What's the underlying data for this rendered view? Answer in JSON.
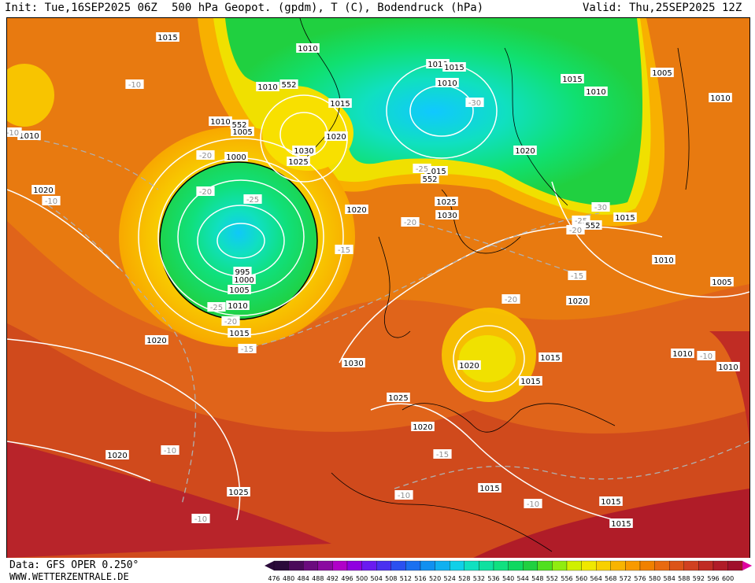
{
  "header": {
    "init": "Init: Tue,16SEP2025 06Z",
    "title": "500 hPa Geopot. (gpdm), T (C), Bodendruck (hPa)",
    "valid": "Valid: Thu,25SEP2025 12Z"
  },
  "footer": {
    "data_source": "Data: GFS OPER 0.250°",
    "website": "WWW.WETTERZENTRALE.DE"
  },
  "legend": {
    "ticks": [
      "476",
      "480",
      "484",
      "488",
      "492",
      "496",
      "500",
      "504",
      "508",
      "512",
      "516",
      "520",
      "524",
      "528",
      "532",
      "536",
      "540",
      "544",
      "548",
      "552",
      "556",
      "560",
      "564",
      "568",
      "572",
      "576",
      "580",
      "584",
      "588",
      "592",
      "596",
      "600"
    ],
    "colors": [
      "#2a0a3a",
      "#4a0a5a",
      "#6b0b7e",
      "#8a0aa0",
      "#b000c8",
      "#9000e0",
      "#6a1af0",
      "#4a30f0",
      "#2a50f0",
      "#1a70f0",
      "#1090f0",
      "#10b0f0",
      "#10d0e8",
      "#10e0c0",
      "#10e0a0",
      "#10e080",
      "#10d860",
      "#20d040",
      "#50e020",
      "#90ec10",
      "#d0f000",
      "#f0e800",
      "#f8d000",
      "#f8b400",
      "#f89a00",
      "#f08000",
      "#e86a10",
      "#dc5418",
      "#d04020",
      "#c02c24",
      "#b01c28",
      "#a0102c",
      "#e000a0"
    ]
  },
  "isobars": [
    {
      "text": "1015",
      "x": "212",
      "y": "46"
    },
    {
      "text": "1010",
      "x": "390",
      "y": "60"
    },
    {
      "text": "1010",
      "x": "555",
      "y": "80"
    },
    {
      "text": "1015",
      "x": "576",
      "y": "84"
    },
    {
      "text": "1005",
      "x": "840",
      "y": "91"
    },
    {
      "text": "1015",
      "x": "726",
      "y": "99"
    },
    {
      "text": "1010",
      "x": "567",
      "y": "104"
    },
    {
      "text": "1010",
      "x": "339",
      "y": "109"
    },
    {
      "text": "1010",
      "x": "756",
      "y": "115"
    },
    {
      "text": "1010",
      "x": "914",
      "y": "123"
    },
    {
      "text": "1015",
      "x": "431",
      "y": "130"
    },
    {
      "text": "1010",
      "x": "279",
      "y": "153"
    },
    {
      "text": "1005",
      "x": "307",
      "y": "166"
    },
    {
      "text": "1010",
      "x": "36",
      "y": "171"
    },
    {
      "text": "1020",
      "x": "426",
      "y": "172"
    },
    {
      "text": "1030",
      "x": "385",
      "y": "190"
    },
    {
      "text": "1020",
      "x": "666",
      "y": "190"
    },
    {
      "text": "1000",
      "x": "299",
      "y": "198"
    },
    {
      "text": "1025",
      "x": "378",
      "y": "204"
    },
    {
      "text": "1015",
      "x": "553",
      "y": "216"
    },
    {
      "text": "1020",
      "x": "54",
      "y": "240"
    },
    {
      "text": "1025",
      "x": "566",
      "y": "255"
    },
    {
      "text": "1020",
      "x": "452",
      "y": "265"
    },
    {
      "text": "1030",
      "x": "567",
      "y": "272"
    },
    {
      "text": "1015",
      "x": "793",
      "y": "275"
    },
    {
      "text": "1010",
      "x": "842",
      "y": "329"
    },
    {
      "text": "995",
      "x": "307",
      "y": "344"
    },
    {
      "text": "1000",
      "x": "309",
      "y": "354"
    },
    {
      "text": "1005",
      "x": "916",
      "y": "357"
    },
    {
      "text": "1005",
      "x": "303",
      "y": "367"
    },
    {
      "text": "1020",
      "x": "733",
      "y": "381"
    },
    {
      "text": "1010",
      "x": "301",
      "y": "387"
    },
    {
      "text": "1015",
      "x": "303",
      "y": "422"
    },
    {
      "text": "1020",
      "x": "198",
      "y": "431"
    },
    {
      "text": "1010",
      "x": "866",
      "y": "448"
    },
    {
      "text": "1015",
      "x": "698",
      "y": "453"
    },
    {
      "text": "1030",
      "x": "448",
      "y": "460"
    },
    {
      "text": "1020",
      "x": "595",
      "y": "463"
    },
    {
      "text": "1010",
      "x": "924",
      "y": "465"
    },
    {
      "text": "1015",
      "x": "673",
      "y": "483"
    },
    {
      "text": "1025",
      "x": "505",
      "y": "504"
    },
    {
      "text": "1020",
      "x": "536",
      "y": "541"
    },
    {
      "text": "1020",
      "x": "148",
      "y": "577"
    },
    {
      "text": "1015",
      "x": "621",
      "y": "619"
    },
    {
      "text": "1025",
      "x": "302",
      "y": "624"
    },
    {
      "text": "1015",
      "x": "775",
      "y": "636"
    },
    {
      "text": "1015",
      "x": "788",
      "y": "664"
    }
  ],
  "temperatures": [
    {
      "text": "-10",
      "x": "170",
      "y": "106"
    },
    {
      "text": "-10",
      "x": "15",
      "y": "167"
    },
    {
      "text": "-20",
      "x": "260",
      "y": "196"
    },
    {
      "text": "-25",
      "x": "535",
      "y": "213"
    },
    {
      "text": "-20",
      "x": "260",
      "y": "242"
    },
    {
      "text": "-10",
      "x": "64",
      "y": "254"
    },
    {
      "text": "-25",
      "x": "320",
      "y": "252"
    },
    {
      "text": "-30",
      "x": "602",
      "y": "129"
    },
    {
      "text": "-25",
      "x": "737",
      "y": "279"
    },
    {
      "text": "-30",
      "x": "762",
      "y": "262"
    },
    {
      "text": "-20",
      "x": "520",
      "y": "281"
    },
    {
      "text": "-20",
      "x": "730",
      "y": "291"
    },
    {
      "text": "-15",
      "x": "436",
      "y": "316"
    },
    {
      "text": "-15",
      "x": "732",
      "y": "349"
    },
    {
      "text": "-20",
      "x": "648",
      "y": "379"
    },
    {
      "text": "-25",
      "x": "274",
      "y": "389"
    },
    {
      "text": "-20",
      "x": "292",
      "y": "407"
    },
    {
      "text": "-15",
      "x": "313",
      "y": "442"
    },
    {
      "text": "-10",
      "x": "896",
      "y": "451"
    },
    {
      "text": "-10",
      "x": "215",
      "y": "571"
    },
    {
      "text": "-15",
      "x": "561",
      "y": "576"
    },
    {
      "text": "-10",
      "x": "512",
      "y": "628"
    },
    {
      "text": "-10",
      "x": "676",
      "y": "639"
    },
    {
      "text": "-10",
      "x": "254",
      "y": "658"
    }
  ],
  "geopot_labels": [
    {
      "text": "552",
      "x": "366",
      "y": "106"
    },
    {
      "text": "552",
      "x": "303",
      "y": "157"
    },
    {
      "text": "552",
      "x": "545",
      "y": "226"
    },
    {
      "text": "552",
      "x": "752",
      "y": "285"
    }
  ]
}
